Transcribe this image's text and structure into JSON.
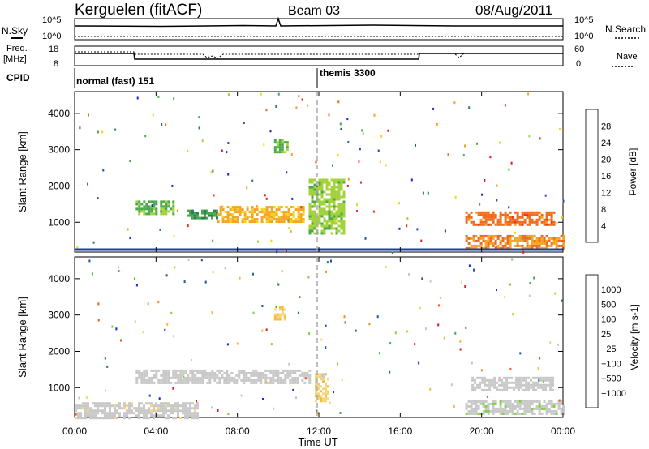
{
  "header": {
    "station": "Kerguelen (fitACF)",
    "beam": "Beam 03",
    "date": "08/Aug/2011"
  },
  "top_panels": {
    "nsky_label": "N.Sky",
    "nsearch_label": "N.Search",
    "noise_ticks": [
      "10^5",
      "10^0"
    ],
    "freq_label": "Freq.",
    "freq_unit": "[MHz]",
    "freq_ticks": [
      "18",
      "8"
    ],
    "nave_label": "Nave",
    "nave_ticks": [
      "60",
      "0"
    ],
    "cpid_label": "CPID",
    "cpid_segments": [
      {
        "name": "normal (fast) 151",
        "start_hour": 0,
        "end_hour": 12
      },
      {
        "name": "themis 3300",
        "start_hour": 12,
        "end_hour": 24
      }
    ]
  },
  "x_axis": {
    "label": "Time UT",
    "ticks": [
      "00:00",
      "04:00",
      "08:00",
      "12:00",
      "16:00",
      "20:00",
      "00:00"
    ],
    "range_hours": [
      0,
      24
    ]
  },
  "colors": {
    "power_scale": [
      "#1a2bd8",
      "#1f55a8",
      "#2e7d5e",
      "#49a84a",
      "#a3d23c",
      "#f2d21d",
      "#f5a422",
      "#ef6a1b",
      "#e8361b",
      "#e31a1c"
    ],
    "velocity_scale": [
      "#e31a1c",
      "#ef5a1b",
      "#f58c22",
      "#f7bb3a",
      "#f3d77a",
      "#c8c8c8",
      "#c8c8c8",
      "#7fd040",
      "#3fae4a",
      "#1f7a6a",
      "#1f55a8",
      "#1a2bd8"
    ]
  },
  "chart_data": [
    {
      "type": "heatmap",
      "panel": "power",
      "xlabel": "Time UT",
      "ylabel": "Slant Range [km]",
      "ylim": [
        180,
        4600
      ],
      "yticks": [
        1000,
        2000,
        3000,
        4000
      ],
      "colorbar": {
        "label": "Power [dB]",
        "range": [
          0,
          32
        ],
        "ticks": [
          "4",
          "8",
          "12",
          "16",
          "20",
          "24",
          "28"
        ]
      },
      "echo_regions": [
        {
          "t_start": 3.0,
          "t_end": 4.8,
          "r_min": 1200,
          "r_max": 1600,
          "value": 12
        },
        {
          "t_start": 5.5,
          "t_end": 7.0,
          "r_min": 1100,
          "r_max": 1350,
          "value": 10
        },
        {
          "t_start": 7.0,
          "t_end": 11.2,
          "r_min": 1000,
          "r_max": 1450,
          "value": 20
        },
        {
          "t_start": 9.8,
          "t_end": 10.5,
          "r_min": 2900,
          "r_max": 3300,
          "value": 12
        },
        {
          "t_start": 11.5,
          "t_end": 13.2,
          "r_min": 700,
          "r_max": 2200,
          "value": 14
        },
        {
          "t_start": 19.2,
          "t_end": 23.6,
          "r_min": 900,
          "r_max": 1300,
          "value": 24
        },
        {
          "t_start": 19.2,
          "t_end": 24.0,
          "r_min": 250,
          "r_max": 650,
          "value": 22
        }
      ]
    },
    {
      "type": "heatmap",
      "panel": "velocity",
      "xlabel": "Time UT",
      "ylabel": "Slant Range [km]",
      "ylim": [
        180,
        4600
      ],
      "yticks": [
        1000,
        2000,
        3000,
        4000
      ],
      "colorbar": {
        "label": "Velocity [m s-1]",
        "range": [
          -1200,
          1200
        ],
        "ticks": [
          "1000",
          "500",
          "100",
          "25",
          "−25",
          "−100",
          "−500",
          "−1000"
        ]
      },
      "echo_regions": [
        {
          "t_start": 3.0,
          "t_end": 11.5,
          "r_min": 1100,
          "r_max": 1500,
          "value": 0
        },
        {
          "t_start": 11.8,
          "t_end": 12.4,
          "r_min": 600,
          "r_max": 1400,
          "value": -300
        },
        {
          "t_start": 9.8,
          "t_end": 10.3,
          "r_min": 2900,
          "r_max": 3250,
          "value": -400
        },
        {
          "t_start": 19.5,
          "t_end": 23.5,
          "r_min": 900,
          "r_max": 1300,
          "value": 0
        },
        {
          "t_start": 19.2,
          "t_end": 24.0,
          "r_min": 250,
          "r_max": 650,
          "value": 80
        },
        {
          "t_start": 0.0,
          "t_end": 6.0,
          "r_min": 180,
          "r_max": 600,
          "value": -70
        }
      ]
    }
  ]
}
